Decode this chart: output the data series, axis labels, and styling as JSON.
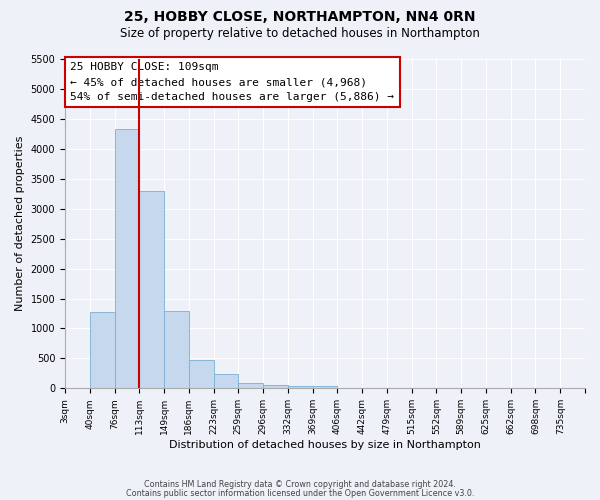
{
  "title": "25, HOBBY CLOSE, NORTHAMPTON, NN4 0RN",
  "subtitle": "Size of property relative to detached houses in Northampton",
  "xlabel": "Distribution of detached houses by size in Northampton",
  "ylabel": "Number of detached properties",
  "bar_color": "#c5d8ed",
  "bar_edge_color": "#7bafd4",
  "background_color": "#eef2f8",
  "grid_color": "#ffffff",
  "bin_labels": [
    "3sqm",
    "40sqm",
    "76sqm",
    "113sqm",
    "149sqm",
    "186sqm",
    "223sqm",
    "259sqm",
    "296sqm",
    "332sqm",
    "369sqm",
    "406sqm",
    "442sqm",
    "479sqm",
    "515sqm",
    "552sqm",
    "589sqm",
    "625sqm",
    "662sqm",
    "698sqm",
    "735sqm"
  ],
  "bar_values": [
    0,
    1270,
    4330,
    3290,
    1290,
    480,
    240,
    90,
    60,
    40,
    40,
    0,
    0,
    0,
    0,
    0,
    0,
    0,
    0,
    0,
    0
  ],
  "ylim": [
    0,
    5500
  ],
  "yticks": [
    0,
    500,
    1000,
    1500,
    2000,
    2500,
    3000,
    3500,
    4000,
    4500,
    5000,
    5500
  ],
  "vline_x": 3.0,
  "vline_color": "#cc0000",
  "annotation_title": "25 HOBBY CLOSE: 109sqm",
  "annotation_line1": "← 45% of detached houses are smaller (4,968)",
  "annotation_line2": "54% of semi-detached houses are larger (5,886) →",
  "footer1": "Contains HM Land Registry data © Crown copyright and database right 2024.",
  "footer2": "Contains public sector information licensed under the Open Government Licence v3.0."
}
